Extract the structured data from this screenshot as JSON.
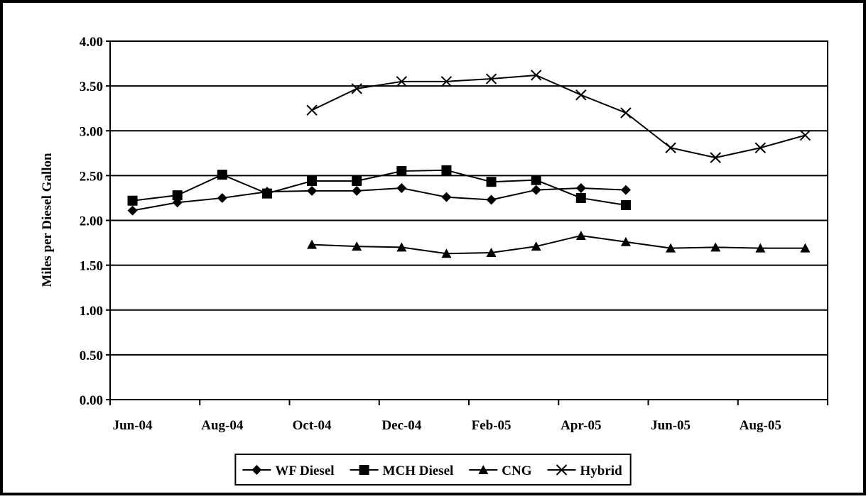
{
  "chart_data": {
    "type": "line",
    "y_label": "Miles per Diesel Gallon",
    "categories": [
      "Jun-04",
      null,
      "Aug-04",
      null,
      "Oct-04",
      null,
      "Dec-04",
      null,
      "Feb-05",
      null,
      "Apr-05",
      null,
      "Jun-05",
      null,
      "Aug-05",
      null
    ],
    "series": [
      {
        "name": "WF Diesel",
        "color": "#000000",
        "marker": "diamond",
        "values": [
          2.11,
          2.2,
          2.25,
          2.32,
          2.33,
          2.33,
          2.36,
          2.26,
          2.23,
          2.34,
          2.36,
          2.34,
          null,
          null,
          null,
          null
        ]
      },
      {
        "name": "MCH Diesel",
        "color": "#000000",
        "marker": "square",
        "values": [
          2.22,
          2.28,
          2.51,
          2.3,
          2.44,
          2.44,
          2.55,
          2.56,
          2.43,
          2.45,
          2.25,
          2.17,
          null,
          null,
          null,
          null
        ]
      },
      {
        "name": "CNG",
        "color": "#000000",
        "marker": "triangle",
        "values": [
          null,
          null,
          null,
          null,
          1.73,
          1.71,
          1.7,
          1.63,
          1.64,
          1.71,
          1.83,
          1.76,
          1.69,
          1.7,
          1.69,
          1.69
        ]
      },
      {
        "name": "Hybrid",
        "color": "#000000",
        "marker": "x",
        "values": [
          null,
          null,
          null,
          null,
          3.23,
          3.47,
          3.55,
          3.55,
          3.58,
          3.62,
          3.4,
          3.2,
          2.81,
          2.7,
          2.81,
          2.95
        ]
      }
    ],
    "ylim": [
      0,
      4
    ],
    "yticks": [
      {
        "value": 0,
        "label": "0.00"
      },
      {
        "value": 0.5,
        "label": "0.50"
      },
      {
        "value": 1,
        "label": "1.00"
      },
      {
        "value": 1.5,
        "label": "1.50"
      },
      {
        "value": 2,
        "label": "2.00"
      },
      {
        "value": 2.5,
        "label": "2.50"
      },
      {
        "value": 3,
        "label": "3.00"
      },
      {
        "value": 3.5,
        "label": "3.50"
      },
      {
        "value": 4,
        "label": "4.00"
      }
    ],
    "grid": true,
    "legend": "bottom"
  }
}
